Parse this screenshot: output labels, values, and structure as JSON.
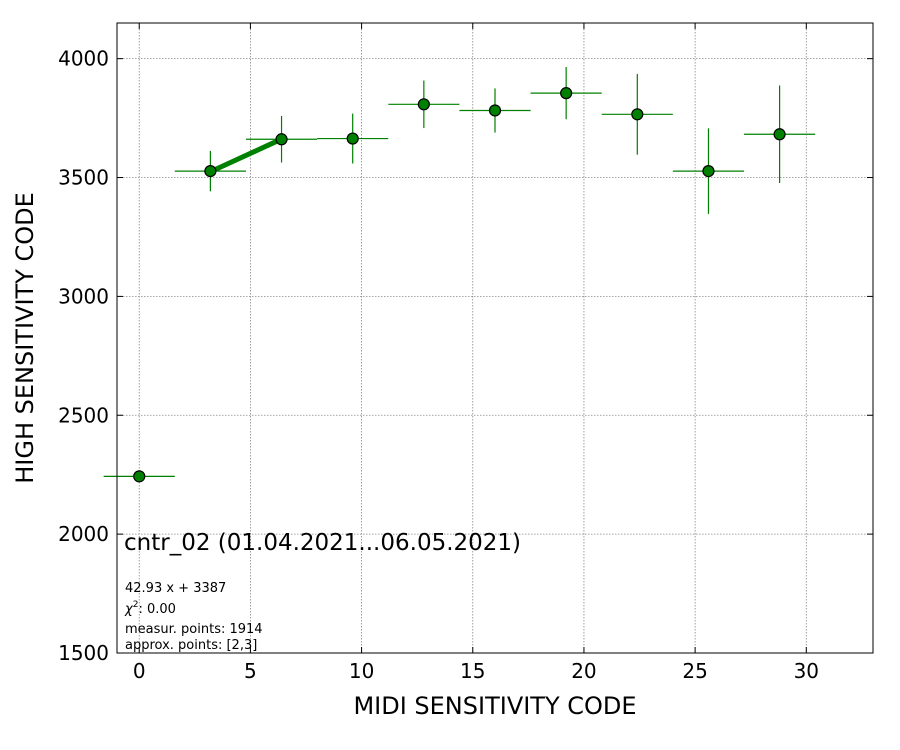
{
  "chart_data": {
    "type": "scatter",
    "xlabel": "MIDI SENSITIVITY CODE",
    "ylabel": "HIGH SENSITIVITY CODE",
    "xlim": [
      -1,
      33
    ],
    "ylim": [
      1500,
      4150
    ],
    "xticks": [
      0,
      5,
      10,
      15,
      20,
      25,
      30
    ],
    "yticks": [
      1500,
      2000,
      2500,
      3000,
      3500,
      4000
    ],
    "grid": true,
    "colors": {
      "errorbar": "#008000",
      "marker_fill": "#008000",
      "marker_edge": "#000000",
      "fit_line": "#008000",
      "grid": "#888888"
    },
    "points": [
      {
        "x": 0.0,
        "y": 2243,
        "xerr": 1.6,
        "yerr": 0
      },
      {
        "x": 3.2,
        "y": 3527,
        "xerr": 1.6,
        "yerr": 85
      },
      {
        "x": 6.4,
        "y": 3661,
        "xerr": 1.6,
        "yerr": 98
      },
      {
        "x": 9.6,
        "y": 3664,
        "xerr": 1.6,
        "yerr": 105
      },
      {
        "x": 12.8,
        "y": 3808,
        "xerr": 1.6,
        "yerr": 100
      },
      {
        "x": 16.0,
        "y": 3782,
        "xerr": 1.6,
        "yerr": 93
      },
      {
        "x": 19.2,
        "y": 3855,
        "xerr": 1.6,
        "yerr": 110
      },
      {
        "x": 22.4,
        "y": 3766,
        "xerr": 1.6,
        "yerr": 170
      },
      {
        "x": 25.6,
        "y": 3527,
        "xerr": 1.6,
        "yerr": 180
      },
      {
        "x": 28.8,
        "y": 3682,
        "xerr": 1.6,
        "yerr": 205
      }
    ],
    "fit_line": {
      "x": [
        3.2,
        6.4
      ],
      "slope": 42.93,
      "intercept": 3387
    },
    "annotations": {
      "title": "cntr_02 (01.04.2021...06.05.2021)",
      "equation": "42.93 x + 3387",
      "chi2_symbol": "χ",
      "chi2_sup": "2",
      "chi2_value": ": 0.00",
      "measur_points": "measur. points: 1914",
      "approx_points": "approx. points: [2,3]"
    }
  }
}
